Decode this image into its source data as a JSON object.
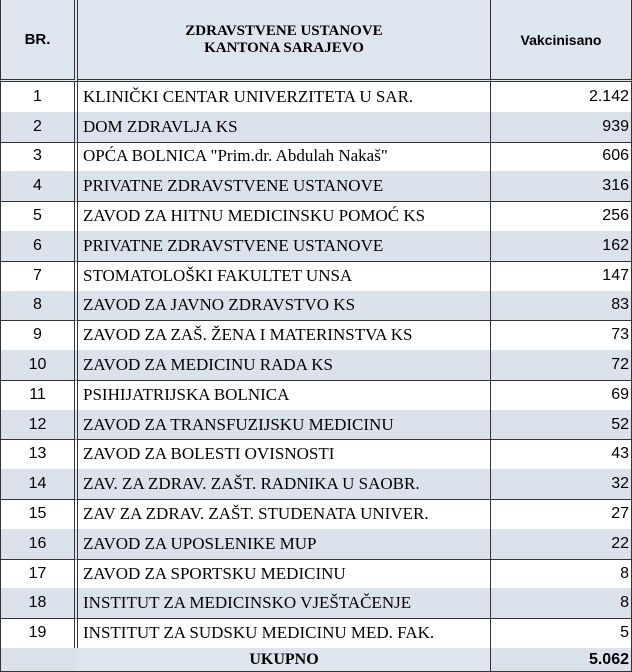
{
  "header": {
    "number": "BR.",
    "institution_lines": [
      "ZDRAVSTVENE USTANOVE",
      "KANTONA SARAJEVO"
    ],
    "value": "Vakcinisano"
  },
  "rows": [
    [
      "1",
      "KLINIČKI CENTAR UNIVERZITETA U SAR.",
      "2.142"
    ],
    [
      "2",
      "DOM ZDRAVLJA KS",
      "939"
    ],
    [
      "3",
      "OPĆA BOLNICA \"Prim.dr. Abdulah Nakaš\"",
      "606"
    ],
    [
      "4",
      "PRIVATNE ZDRAVSTVENE USTANOVE",
      "316"
    ],
    [
      "5",
      "ZAVOD ZA HITNU MEDICINSKU POMOĆ KS",
      "256"
    ],
    [
      "6",
      "PRIVATNE ZDRAVSTVENE USTANOVE",
      "162"
    ],
    [
      "7",
      "STOMATOLOŠKI FAKULTET UNSA",
      "147"
    ],
    [
      "8",
      "ZAVOD ZA JAVNO ZDRAVSTVO KS",
      "83"
    ],
    [
      "9",
      "ZAVOD ZA ZAŠ. ŽENA I MATERINSTVA KS",
      "73"
    ],
    [
      "10",
      "ZAVOD ZA MEDICINU RADA KS",
      "72"
    ],
    [
      "11",
      "PSIHIJATRIJSKA BOLNICA",
      "69"
    ],
    [
      "12",
      "ZAVOD ZA TRANSFUZIJSKU MEDICINU",
      "52"
    ],
    [
      "13",
      "ZAVOD ZA BOLESTI OVISNOSTI",
      "43"
    ],
    [
      "14",
      "ZAV. ZA ZDRAV. ZAŠT. RADNIKA U SAOBR.",
      "32"
    ],
    [
      "15",
      "ZAV ZA ZDRAV. ZAŠT. STUDENATA UNIVER.",
      "27"
    ],
    [
      "16",
      "ZAVOD ZA UPOSLENIKE MUP",
      "22"
    ],
    [
      "17",
      "ZAVOD ZA SPORTSKU MEDICINU",
      "8"
    ],
    [
      "18",
      "INSTITUT ZA MEDICINSKO VJEŠTAČENJE",
      "8"
    ],
    [
      "19",
      "INSTITUT ZA SUDSKU MEDICINU MED. FAK.",
      "5"
    ]
  ],
  "total": {
    "label": "UKUPNO",
    "value": "5.062"
  }
}
